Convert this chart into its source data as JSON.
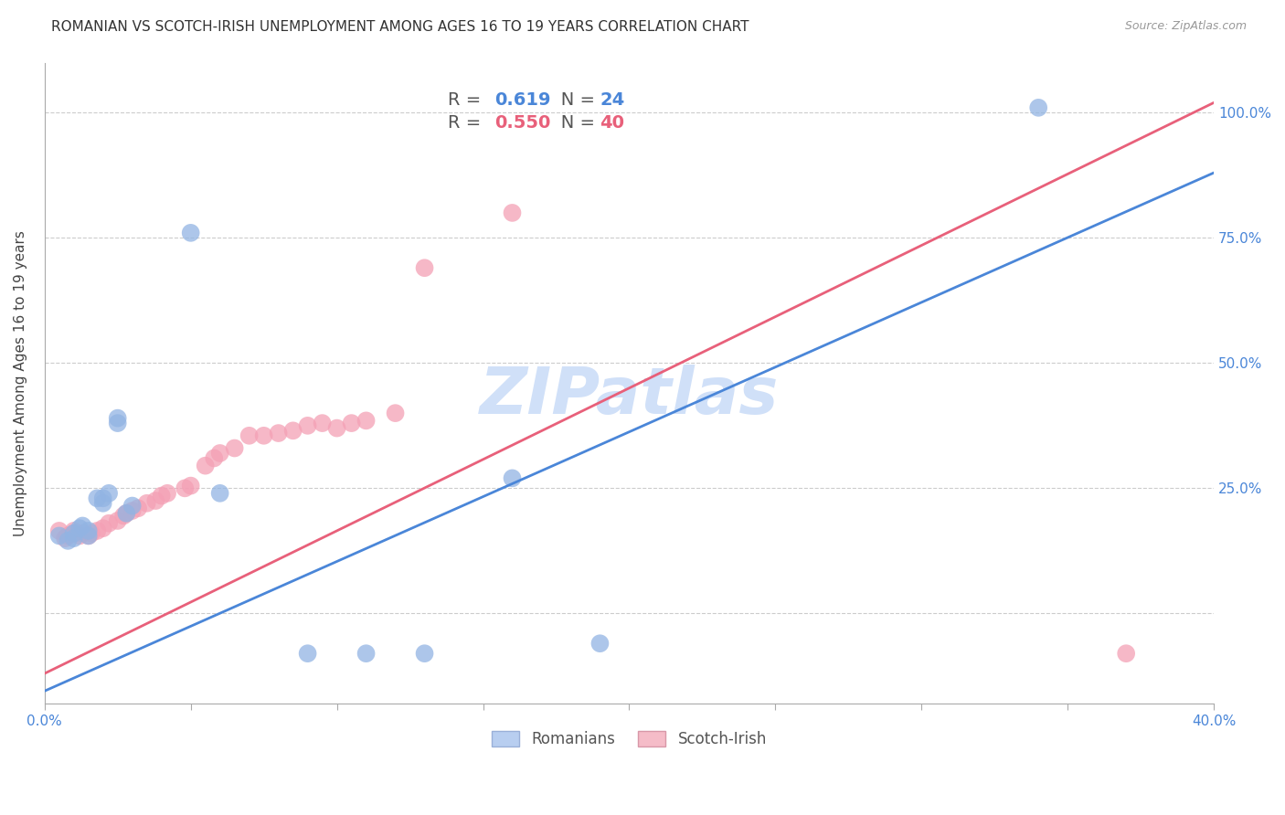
{
  "title": "ROMANIAN VS SCOTCH-IRISH UNEMPLOYMENT AMONG AGES 16 TO 19 YEARS CORRELATION CHART",
  "source": "Source: ZipAtlas.com",
  "ylabel": "Unemployment Among Ages 16 to 19 years",
  "xlim": [
    0.0,
    0.4
  ],
  "ylim": [
    -0.18,
    1.1
  ],
  "xticks": [
    0.0,
    0.05,
    0.1,
    0.15,
    0.2,
    0.25,
    0.3,
    0.35,
    0.4
  ],
  "ytick_positions": [
    0.0,
    0.25,
    0.5,
    0.75,
    1.0
  ],
  "yticklabels_right": [
    "",
    "25.0%",
    "50.0%",
    "75.0%",
    "100.0%"
  ],
  "romanian_R": "0.619",
  "romanian_N": "24",
  "scotch_irish_R": "0.550",
  "scotch_irish_N": "40",
  "blue_color": "#92b4e3",
  "pink_color": "#f4a0b5",
  "blue_line_color": "#4a86d8",
  "pink_line_color": "#e8607a",
  "legend_box_color_blue": "#b8cef0",
  "legend_box_color_pink": "#f5bcc8",
  "watermark_color": "#d0e0f8",
  "romanian_x": [
    0.005,
    0.008,
    0.01,
    0.01,
    0.012,
    0.013,
    0.015,
    0.015,
    0.018,
    0.02,
    0.02,
    0.022,
    0.025,
    0.025,
    0.028,
    0.03,
    0.05,
    0.06,
    0.09,
    0.11,
    0.13,
    0.16,
    0.19,
    0.34
  ],
  "romanian_y": [
    0.155,
    0.145,
    0.15,
    0.16,
    0.17,
    0.175,
    0.155,
    0.165,
    0.23,
    0.22,
    0.23,
    0.24,
    0.38,
    0.39,
    0.2,
    0.215,
    0.76,
    0.24,
    -0.08,
    -0.08,
    -0.08,
    0.27,
    -0.06,
    1.01
  ],
  "scotch_irish_x": [
    0.005,
    0.007,
    0.008,
    0.01,
    0.01,
    0.012,
    0.013,
    0.015,
    0.016,
    0.018,
    0.02,
    0.022,
    0.025,
    0.027,
    0.028,
    0.03,
    0.032,
    0.035,
    0.038,
    0.04,
    0.042,
    0.048,
    0.05,
    0.055,
    0.058,
    0.06,
    0.065,
    0.07,
    0.075,
    0.08,
    0.085,
    0.09,
    0.095,
    0.1,
    0.105,
    0.11,
    0.12,
    0.13,
    0.16,
    0.37
  ],
  "scotch_irish_y": [
    0.165,
    0.15,
    0.155,
    0.16,
    0.165,
    0.155,
    0.16,
    0.155,
    0.16,
    0.165,
    0.17,
    0.18,
    0.185,
    0.195,
    0.2,
    0.205,
    0.21,
    0.22,
    0.225,
    0.235,
    0.24,
    0.25,
    0.255,
    0.295,
    0.31,
    0.32,
    0.33,
    0.355,
    0.355,
    0.36,
    0.365,
    0.375,
    0.38,
    0.37,
    0.38,
    0.385,
    0.4,
    0.69,
    0.8,
    -0.08
  ],
  "romanian_trend_x": [
    0.0,
    0.4
  ],
  "romanian_trend_y": [
    -0.155,
    0.88
  ],
  "scotch_irish_trend_x": [
    0.0,
    0.4
  ],
  "scotch_irish_trend_y": [
    -0.12,
    1.02
  ],
  "marker_size": 200,
  "grid_color": "#cccccc",
  "background_color": "#ffffff",
  "title_fontsize": 11,
  "axis_label_fontsize": 11,
  "tick_fontsize": 11,
  "legend_fontsize": 14
}
